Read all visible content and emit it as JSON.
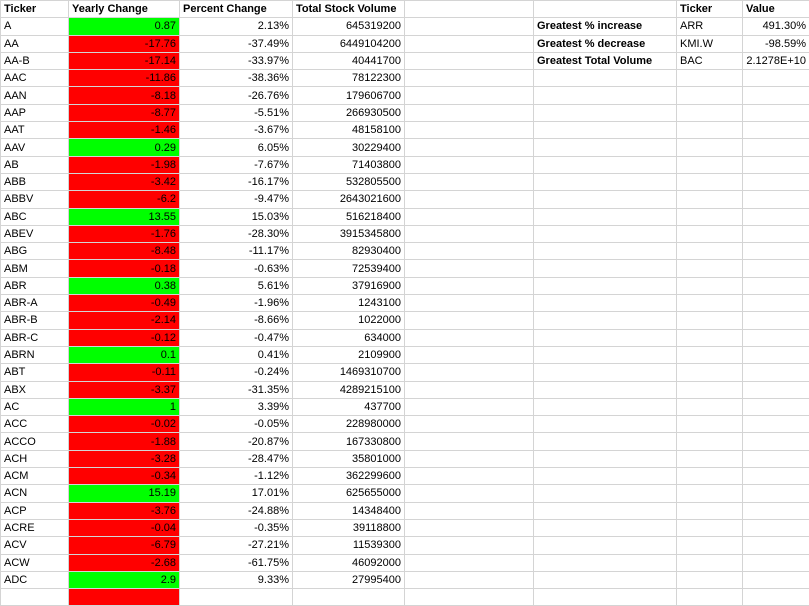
{
  "headers": {
    "ticker": "Ticker",
    "yearly_change": "Yearly Change",
    "percent_change": "Percent Change",
    "total_volume": "Total Stock Volume",
    "summary_ticker": "Ticker",
    "summary_value": "Value"
  },
  "colors": {
    "positive": "#00ff00",
    "negative": "#ff0000",
    "grid": "#d4d4d4"
  },
  "rows": [
    {
      "ticker": "A",
      "change": "0.87",
      "pct": "2.13%",
      "volume": "645319200",
      "positive": true
    },
    {
      "ticker": "AA",
      "change": "-17.76",
      "pct": "-37.49%",
      "volume": "6449104200",
      "positive": false
    },
    {
      "ticker": "AA-B",
      "change": "-17.14",
      "pct": "-33.97%",
      "volume": "40441700",
      "positive": false
    },
    {
      "ticker": "AAC",
      "change": "-11.86",
      "pct": "-38.36%",
      "volume": "78122300",
      "positive": false
    },
    {
      "ticker": "AAN",
      "change": "-8.18",
      "pct": "-26.76%",
      "volume": "179606700",
      "positive": false
    },
    {
      "ticker": "AAP",
      "change": "-8.77",
      "pct": "-5.51%",
      "volume": "266930500",
      "positive": false
    },
    {
      "ticker": "AAT",
      "change": "-1.46",
      "pct": "-3.67%",
      "volume": "48158100",
      "positive": false
    },
    {
      "ticker": "AAV",
      "change": "0.29",
      "pct": "6.05%",
      "volume": "30229400",
      "positive": true
    },
    {
      "ticker": "AB",
      "change": "-1.98",
      "pct": "-7.67%",
      "volume": "71403800",
      "positive": false
    },
    {
      "ticker": "ABB",
      "change": "-3.42",
      "pct": "-16.17%",
      "volume": "532805500",
      "positive": false
    },
    {
      "ticker": "ABBV",
      "change": "-6.2",
      "pct": "-9.47%",
      "volume": "2643021600",
      "positive": false
    },
    {
      "ticker": "ABC",
      "change": "13.55",
      "pct": "15.03%",
      "volume": "516218400",
      "positive": true
    },
    {
      "ticker": "ABEV",
      "change": "-1.76",
      "pct": "-28.30%",
      "volume": "3915345800",
      "positive": false
    },
    {
      "ticker": "ABG",
      "change": "-8.48",
      "pct": "-11.17%",
      "volume": "82930400",
      "positive": false
    },
    {
      "ticker": "ABM",
      "change": "-0.18",
      "pct": "-0.63%",
      "volume": "72539400",
      "positive": false
    },
    {
      "ticker": "ABR",
      "change": "0.38",
      "pct": "5.61%",
      "volume": "37916900",
      "positive": true
    },
    {
      "ticker": "ABR-A",
      "change": "-0.49",
      "pct": "-1.96%",
      "volume": "1243100",
      "positive": false
    },
    {
      "ticker": "ABR-B",
      "change": "-2.14",
      "pct": "-8.66%",
      "volume": "1022000",
      "positive": false
    },
    {
      "ticker": "ABR-C",
      "change": "-0.12",
      "pct": "-0.47%",
      "volume": "634000",
      "positive": false
    },
    {
      "ticker": "ABRN",
      "change": "0.1",
      "pct": "0.41%",
      "volume": "2109900",
      "positive": true
    },
    {
      "ticker": "ABT",
      "change": "-0.11",
      "pct": "-0.24%",
      "volume": "1469310700",
      "positive": false
    },
    {
      "ticker": "ABX",
      "change": "-3.37",
      "pct": "-31.35%",
      "volume": "4289215100",
      "positive": false
    },
    {
      "ticker": "AC",
      "change": "1",
      "pct": "3.39%",
      "volume": "437700",
      "positive": true
    },
    {
      "ticker": "ACC",
      "change": "-0.02",
      "pct": "-0.05%",
      "volume": "228980000",
      "positive": false
    },
    {
      "ticker": "ACCO",
      "change": "-1.88",
      "pct": "-20.87%",
      "volume": "167330800",
      "positive": false
    },
    {
      "ticker": "ACH",
      "change": "-3.28",
      "pct": "-28.47%",
      "volume": "35801000",
      "positive": false
    },
    {
      "ticker": "ACM",
      "change": "-0.34",
      "pct": "-1.12%",
      "volume": "362299600",
      "positive": false
    },
    {
      "ticker": "ACN",
      "change": "15.19",
      "pct": "17.01%",
      "volume": "625655000",
      "positive": true
    },
    {
      "ticker": "ACP",
      "change": "-3.76",
      "pct": "-24.88%",
      "volume": "14348400",
      "positive": false
    },
    {
      "ticker": "ACRE",
      "change": "-0.04",
      "pct": "-0.35%",
      "volume": "39118800",
      "positive": false
    },
    {
      "ticker": "ACV",
      "change": "-6.79",
      "pct": "-27.21%",
      "volume": "11539300",
      "positive": false
    },
    {
      "ticker": "ACW",
      "change": "-2.68",
      "pct": "-61.75%",
      "volume": "46092000",
      "positive": false
    },
    {
      "ticker": "ADC",
      "change": "2.9",
      "pct": "9.33%",
      "volume": "27995400",
      "positive": true
    }
  ],
  "summary": [
    {
      "label": "Greatest % increase",
      "ticker": "ARR",
      "value": "491.30%"
    },
    {
      "label": "Greatest % decrease",
      "ticker": "KMI.W",
      "value": "-98.59%"
    },
    {
      "label": "Greatest Total Volume",
      "ticker": "BAC",
      "value": "2.1278E+10"
    }
  ],
  "trailing_row": {
    "positive": false
  }
}
